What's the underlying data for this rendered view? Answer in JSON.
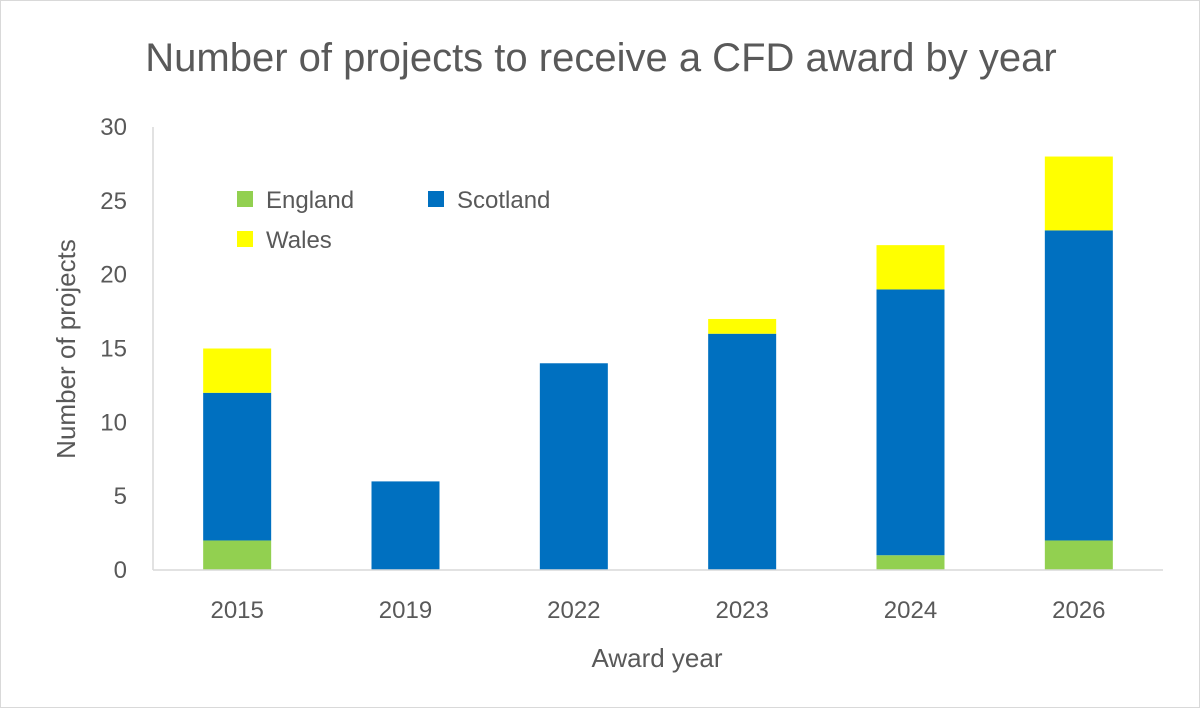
{
  "chart_data": {
    "type": "bar",
    "stacked": true,
    "title": "Number of projects to receive a CFD award by year",
    "xlabel": "Award year",
    "ylabel": "Number of projects",
    "ylim": [
      0,
      30
    ],
    "yticks": [
      "0",
      "5",
      "10",
      "15",
      "20",
      "25",
      "30"
    ],
    "categories": [
      "2015",
      "2019",
      "2022",
      "2023",
      "2024",
      "2026"
    ],
    "series": [
      {
        "name": "England",
        "color": "#92d050",
        "values": [
          2,
          0,
          0,
          0,
          1,
          2
        ]
      },
      {
        "name": "Scotland",
        "color": "#0070c0",
        "values": [
          10,
          6,
          14,
          16,
          18,
          21
        ]
      },
      {
        "name": "Wales",
        "color": "#ffff00",
        "values": [
          3,
          0,
          0,
          1,
          3,
          5
        ]
      }
    ],
    "legend": "top-left, inside plot"
  }
}
